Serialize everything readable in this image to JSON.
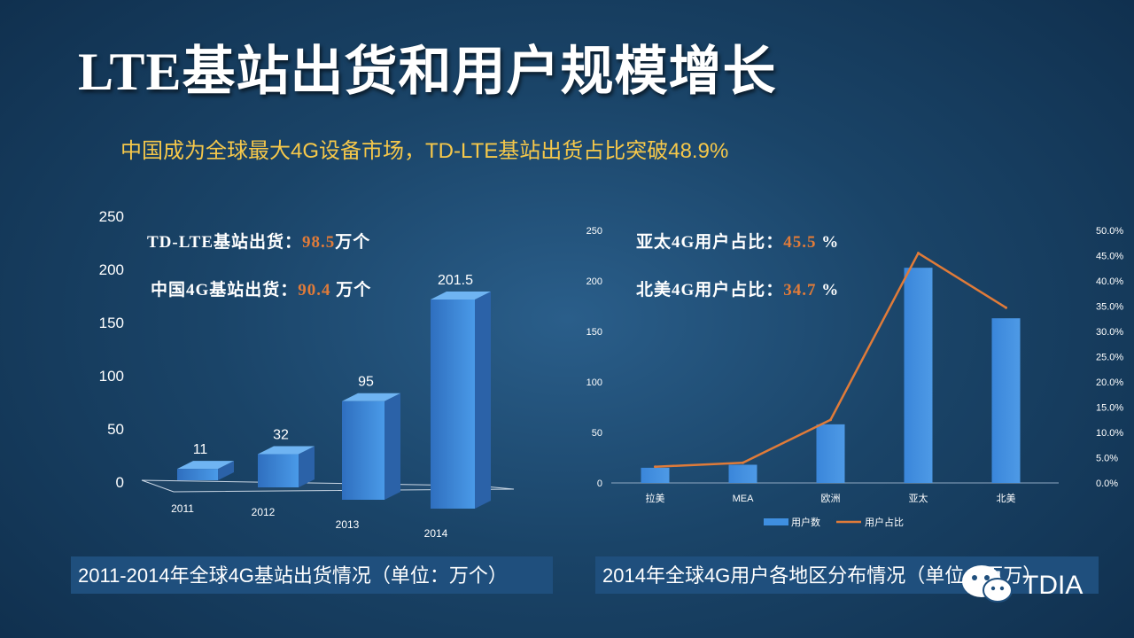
{
  "title": "LTE基站出货和用户规模增长",
  "subtitle": "中国成为全球最大4G设备市场，TD-LTE基站出货占比突破48.9%",
  "left_annotations": [
    {
      "label": "TD-LTE基站出货：",
      "value": "98.5",
      "unit": "万个"
    },
    {
      "label": "中国4G基站出货：",
      "value": "90.4",
      "unit": " 万个"
    }
  ],
  "right_annotations": [
    {
      "label": "亚太4G用户占比：",
      "value": "45.5",
      "unit": " %"
    },
    {
      "label": "北美4G用户占比：",
      "value": "34.7",
      "unit": " %"
    }
  ],
  "left_caption": "2011-2014年全球4G基站出货情况（单位：万个）",
  "right_caption": "2014年全球4G用户各地区分布情况（单位：百万）",
  "watermark": "TDIA",
  "colors": {
    "accent_orange": "#e07b39",
    "bar_blue": "#3f8fe0",
    "subtitle_yellow": "#f6c84a"
  },
  "chart_data": [
    {
      "type": "bar",
      "categories": [
        "2011",
        "2012",
        "2013",
        "2014"
      ],
      "values": [
        11,
        32,
        95,
        201.5
      ],
      "data_labels": [
        "11",
        "32",
        "95",
        "201.5"
      ],
      "ylim": [
        0,
        250
      ],
      "y_ticks": [
        "0",
        "50",
        "100",
        "150",
        "200",
        "250"
      ],
      "style": "3d"
    },
    {
      "type": "bar",
      "categories": [
        "拉美",
        "MEA",
        "欧洲",
        "亚太",
        "北美"
      ],
      "series": [
        {
          "name": "用户数",
          "type": "bar",
          "values": [
            15,
            18,
            58,
            213,
            163
          ]
        },
        {
          "name": "用户占比",
          "type": "line",
          "axis": "secondary",
          "values": [
            3.2,
            4.0,
            12.5,
            45.5,
            34.7
          ]
        }
      ],
      "ylim": [
        0,
        250
      ],
      "y_ticks": [
        "0",
        "50",
        "100",
        "150",
        "200",
        "250"
      ],
      "y2lim": [
        0,
        50
      ],
      "y2_ticks": [
        "0.0%",
        "5.0%",
        "10.0%",
        "15.0%",
        "20.0%",
        "25.0%",
        "30.0%",
        "35.0%",
        "40.0%",
        "45.0%",
        "50.0%"
      ],
      "legend_placement": "bottom"
    }
  ]
}
